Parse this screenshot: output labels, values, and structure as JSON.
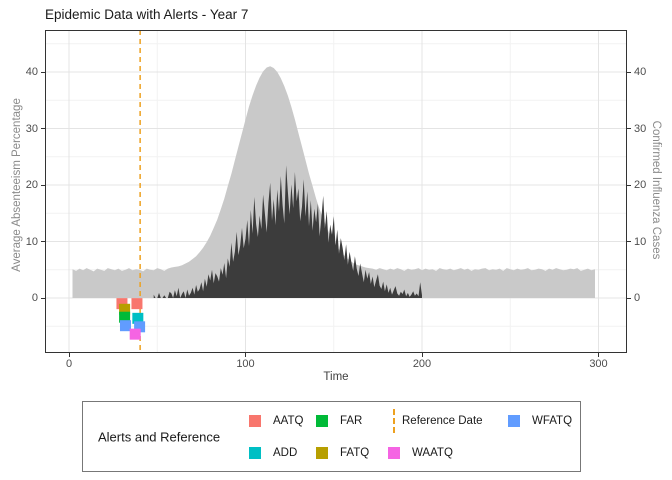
{
  "title": "Epidemic Data with Alerts - Year 7",
  "axes": {
    "left": {
      "title": "Average Absenteeism Percentage",
      "ticks": [
        0,
        10,
        20,
        30,
        40
      ]
    },
    "right": {
      "title": "Confirmed Influenza Cases",
      "ticks": [
        0,
        10,
        20,
        30,
        40
      ]
    },
    "bottom": {
      "title": "Time",
      "ticks": [
        0,
        100,
        200,
        300
      ]
    }
  },
  "chart_data": {
    "type": "area",
    "title": "Epidemic Data with Alerts - Year 7",
    "xlabel": "Time",
    "ylabel_left": "Average Absenteeism Percentage",
    "ylabel_right": "Confirmed Influenza Cases",
    "xlim": [
      -13.5,
      314.6
    ],
    "ylim": [
      -9.7,
      47.4
    ],
    "x_ticks": [
      0,
      100,
      200,
      300
    ],
    "x_minor": [
      50,
      150,
      250
    ],
    "y_ticks": [
      0,
      10,
      20,
      30,
      40
    ],
    "y_minor": [
      -5,
      5,
      15,
      25,
      35,
      45
    ],
    "grid": "major+minor",
    "legend_position": "bottom",
    "series": [
      {
        "name": "Average Absenteeism Percentage",
        "color": "#c9c9c9",
        "x_start": 2,
        "x_step": 2,
        "values": [
          5.1,
          4.8,
          5.2,
          4.9,
          5.3,
          5.0,
          4.7,
          5.2,
          5.0,
          4.8,
          5.3,
          5.1,
          4.9,
          5.2,
          4.8,
          5.0,
          5.3,
          4.9,
          5.1,
          5.0,
          4.7,
          5.2,
          5.0,
          4.9,
          5.3,
          5.1,
          4.8,
          5.2,
          5.4,
          5.5,
          5.6,
          5.8,
          6.1,
          6.4,
          6.9,
          7.4,
          8.1,
          8.9,
          9.9,
          11.0,
          12.4,
          13.9,
          15.7,
          17.6,
          19.8,
          22.0,
          24.4,
          26.8,
          29.2,
          31.6,
          33.9,
          35.9,
          37.6,
          39.0,
          40.1,
          40.8,
          41.0,
          40.7,
          40.0,
          38.9,
          37.5,
          35.8,
          33.8,
          31.6,
          29.2,
          26.8,
          24.4,
          22.0,
          19.8,
          17.6,
          15.7,
          14.0,
          12.5,
          11.1,
          10.0,
          9.0,
          8.2,
          7.5,
          6.9,
          6.4,
          6.0,
          5.8,
          5.6,
          5.4,
          5.3,
          5.2,
          5.0,
          5.3,
          5.1,
          4.9,
          5.2,
          5.0,
          5.3,
          5.1,
          4.8,
          5.2,
          5.0,
          5.1,
          5.3,
          4.9,
          5.2,
          5.0,
          5.1,
          4.8,
          5.3,
          5.1,
          5.0,
          5.2,
          4.9,
          5.1,
          5.3,
          5.0,
          5.2,
          4.8,
          5.1,
          5.0,
          5.2,
          5.3,
          4.9,
          5.1,
          5.0,
          5.2,
          4.8,
          5.3,
          5.1,
          4.9,
          5.2,
          5.0,
          5.1,
          5.3,
          4.9,
          5.0,
          5.2,
          5.1,
          4.8,
          5.2,
          5.0,
          5.3,
          5.1,
          4.9,
          5.0,
          5.2,
          5.1,
          5.3,
          4.8,
          5.0,
          5.2,
          4.9,
          5.1
        ]
      },
      {
        "name": "Confirmed Influenza Cases",
        "color": "#3c3c3c",
        "x_start": 48,
        "x_step": 1,
        "values": [
          0.6,
          0,
          0,
          0.9,
          0,
          0,
          0.5,
          0,
          0,
          1.1,
          0.8,
          0,
          1.4,
          0.3,
          1.8,
          0,
          0.7,
          1.2,
          0,
          1.5,
          0.4,
          0.9,
          1.8,
          0.6,
          2.3,
          1.1,
          1.6,
          2.8,
          1.2,
          3.4,
          2.0,
          4.2,
          3.1,
          5.0,
          2.6,
          4.4,
          3.8,
          2.9,
          5.3,
          4.1,
          6.2,
          3.5,
          7.0,
          5.5,
          9.8,
          6.4,
          8.2,
          11.7,
          7.6,
          9.3,
          12.4,
          8.8,
          10.5,
          13.8,
          9.2,
          15.6,
          11.4,
          17.9,
          13.1,
          10.8,
          14.6,
          12.2,
          18.3,
          14.9,
          11.6,
          16.8,
          20.4,
          13.7,
          17.5,
          12.9,
          19.2,
          15.3,
          21.6,
          16.4,
          13.2,
          23.5,
          18.7,
          14.8,
          20.1,
          15.9,
          22.3,
          17.1,
          19.4,
          13.6,
          16.2,
          21.0,
          14.4,
          18.9,
          12.7,
          17.3,
          11.9,
          15.8,
          13.4,
          16.7,
          10.9,
          14.2,
          18.1,
          12.3,
          15.4,
          9.8,
          13.0,
          11.2,
          14.5,
          9.3,
          12.1,
          7.8,
          10.6,
          8.9,
          6.7,
          9.5,
          5.9,
          8.2,
          6.3,
          4.8,
          7.4,
          5.2,
          3.9,
          6.1,
          4.4,
          2.8,
          5.0,
          3.4,
          4.6,
          2.5,
          3.8,
          1.9,
          3.1,
          4.2,
          2.2,
          1.6,
          2.9,
          1.2,
          2.4,
          0.9,
          1.8,
          0.6,
          1.4,
          2.1,
          0.8,
          0.4,
          1.1,
          0.7,
          1.5,
          0.3,
          0.9,
          0.2,
          0.6,
          1.2,
          0.4,
          0.8,
          0.3,
          2.8,
          0.5
        ]
      }
    ],
    "reference_line": {
      "label": "Reference Date",
      "x": 40.3,
      "color": "#EDA120",
      "style": "dashed"
    },
    "alerts": [
      {
        "type": "AATQ",
        "x": 30.0,
        "y": -1.0,
        "color": "#F8766D"
      },
      {
        "type": "AATQ",
        "x": 38.5,
        "y": -1.0,
        "color": "#F8766D"
      },
      {
        "type": "FATQ",
        "x": 31.5,
        "y": -2.0,
        "color": "#B79F00"
      },
      {
        "type": "FAR",
        "x": 31.5,
        "y": -3.4,
        "color": "#00BA38"
      },
      {
        "type": "ADD",
        "x": 39.0,
        "y": -3.6,
        "color": "#00BFC4"
      },
      {
        "type": "WFATQ",
        "x": 32.0,
        "y": -4.9,
        "color": "#619CFF"
      },
      {
        "type": "WFATQ",
        "x": 40.0,
        "y": -5.1,
        "color": "#619CFF"
      },
      {
        "type": "WAATQ",
        "x": 37.5,
        "y": -6.4,
        "color": "#F564E3"
      }
    ]
  },
  "legend": {
    "title": "Alerts and Reference",
    "entries": [
      {
        "label": "AATQ",
        "color": "#F8766D",
        "symbol": "square"
      },
      {
        "label": "ADD",
        "color": "#00BFC4",
        "symbol": "square"
      },
      {
        "label": "FAR",
        "color": "#00BA38",
        "symbol": "square"
      },
      {
        "label": "FATQ",
        "color": "#B79F00",
        "symbol": "square"
      },
      {
        "label": "Reference Date",
        "color": "#EDA120",
        "symbol": "dashed-line"
      },
      {
        "label": "WAATQ",
        "color": "#F564E3",
        "symbol": "square"
      },
      {
        "label": "WFATQ",
        "color": "#619CFF",
        "symbol": "square"
      }
    ]
  },
  "colors": {
    "grid_major": "#e4e4e4",
    "grid_minor": "#f2f2f2",
    "panel_border": "#333333",
    "tick_text": "#4d4d4d"
  }
}
